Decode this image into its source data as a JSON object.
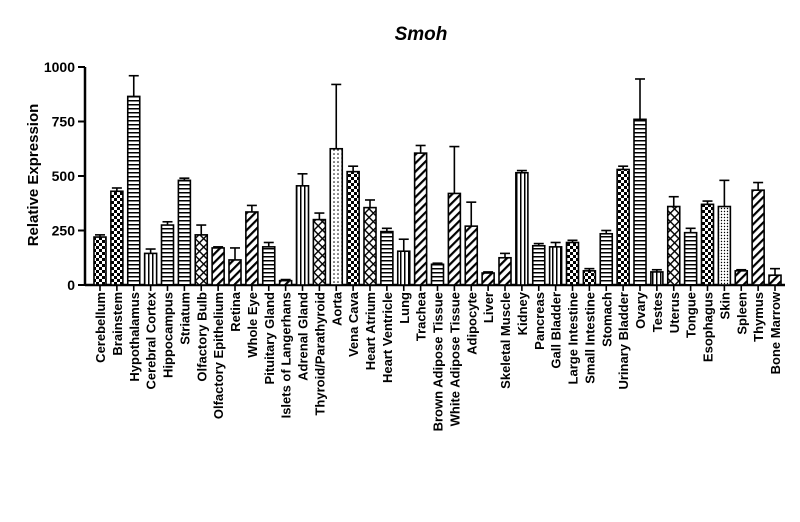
{
  "chart_data": {
    "type": "bar",
    "title": "Smoh",
    "xlabel": "",
    "ylabel": "Relative Expression",
    "ylim": [
      0,
      1000
    ],
    "yticks": [
      "0",
      "250",
      "500",
      "750",
      "1000"
    ],
    "grid": false,
    "legend": "none",
    "categories": [
      "Cerebellum",
      "Brainstem",
      "Hypothalamus",
      "Cerebral Cortex",
      "Hippocampus",
      "Striatum",
      "Olfactory Bulb",
      "Olfactory Epithelium",
      "Retina",
      "Whole Eye",
      "Pituitary Gland",
      "Islets of Langerhans",
      "Adrenal Gland",
      "Thyroid/Parathyroid",
      "Aorta",
      "Vena Cava",
      "Heart Atrium",
      "Heart Ventricle",
      "Lung",
      "Trachea",
      "Brown Adipose Tissue",
      "White Adipose Tissue",
      "Adipocyte",
      "Liver",
      "Skeletal Muscle",
      "Kidney",
      "Pancreas",
      "Gall Bladder",
      "Large Intestine",
      "Small Intestine",
      "Stomach",
      "Urinary Bladder",
      "Ovary",
      "Testes",
      "Uterus",
      "Tongue",
      "Esophagus",
      "Skin",
      "Spleen",
      "Thymus",
      "Bone Marrow"
    ],
    "values": [
      220,
      430,
      865,
      145,
      275,
      480,
      230,
      170,
      115,
      335,
      175,
      20,
      455,
      300,
      625,
      520,
      355,
      245,
      155,
      605,
      95,
      420,
      270,
      55,
      125,
      515,
      180,
      175,
      195,
      65,
      235,
      530,
      760,
      60,
      360,
      240,
      370,
      360,
      65,
      435,
      45
    ],
    "errors": [
      10,
      15,
      95,
      20,
      15,
      10,
      45,
      5,
      55,
      30,
      20,
      5,
      55,
      30,
      295,
      25,
      35,
      15,
      55,
      35,
      5,
      215,
      110,
      5,
      20,
      10,
      10,
      20,
      10,
      10,
      15,
      15,
      185,
      10,
      45,
      20,
      15,
      120,
      5,
      35,
      30
    ],
    "patterns": [
      "checker",
      "checker",
      "hstripe",
      "vstripe",
      "hstripe",
      "hstripe",
      "dcross",
      "dstripe",
      "dstripe",
      "dstripe",
      "hstripe",
      "dstripe",
      "vstripe",
      "dcross",
      "dots",
      "checker",
      "dcross",
      "hstripe",
      "vstripe",
      "dstripe",
      "hstripe",
      "dstripe",
      "dstripe",
      "dstripe",
      "dstripe",
      "vstripe",
      "hstripe",
      "vstripe",
      "checker",
      "checker",
      "hstripe",
      "checker",
      "hstripe",
      "vstripe",
      "dcross",
      "hstripe",
      "checker",
      "dotsdense",
      "dstripe",
      "dstripe",
      "dstripe"
    ],
    "colors": {
      "bar_stroke": "#000000",
      "fill": "#ffffff",
      "pattern": "#000000"
    }
  }
}
